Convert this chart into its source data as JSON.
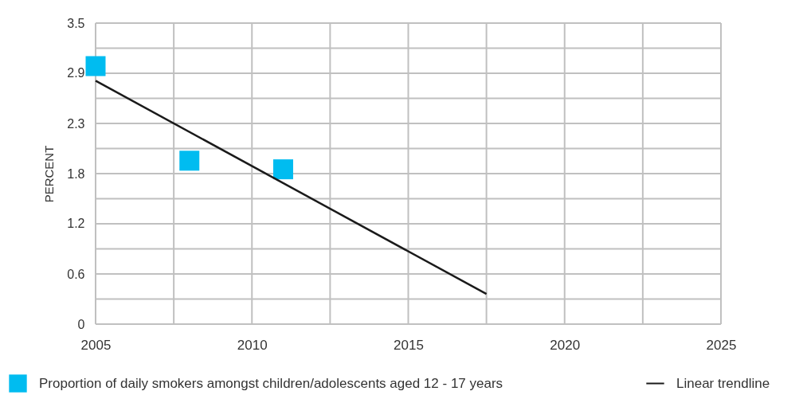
{
  "chart_data": {
    "type": "scatter",
    "ylabel": "PERCENT",
    "xlim": [
      2005,
      2025
    ],
    "xticks": [
      2005,
      {
        "value": 2007.5,
        "label": null
      },
      2010,
      {
        "value": 2012.5,
        "label": null
      },
      2015,
      {
        "value": 2017.5,
        "label": null
      },
      2020,
      {
        "value": 2022.5,
        "label": null
      },
      2025
    ],
    "ylim": [
      0,
      3.5
    ],
    "yticks": [
      0,
      {
        "value": 0.2917,
        "label": null
      },
      {
        "value": 0.5833,
        "label": "0.6"
      },
      {
        "value": 0.875,
        "label": null
      },
      {
        "value": 1.1667,
        "label": "1.2"
      },
      {
        "value": 1.4583,
        "label": null
      },
      {
        "value": 1.75,
        "label": "1.8"
      },
      {
        "value": 2.0417,
        "label": null
      },
      {
        "value": 2.3333,
        "label": "2.3"
      },
      {
        "value": 2.625,
        "label": null
      },
      {
        "value": 2.9167,
        "label": "2.9"
      },
      {
        "value": 3.2083,
        "label": null
      },
      3.5
    ],
    "grid": true,
    "legend": "bottom",
    "series": [
      {
        "name": "Proportion of daily smokers amongst children/adolescents aged 12 - 17 years",
        "type": "scatter",
        "marker": "square",
        "color": "#00bcf0",
        "x": [
          2005,
          2008,
          2011
        ],
        "values": [
          3.0,
          1.9,
          1.8
        ]
      },
      {
        "name": "Linear trendline",
        "type": "line",
        "color": "#1a1a1a",
        "x": [
          2005,
          2017.5
        ],
        "values": [
          2.83,
          0.35
        ]
      }
    ]
  }
}
